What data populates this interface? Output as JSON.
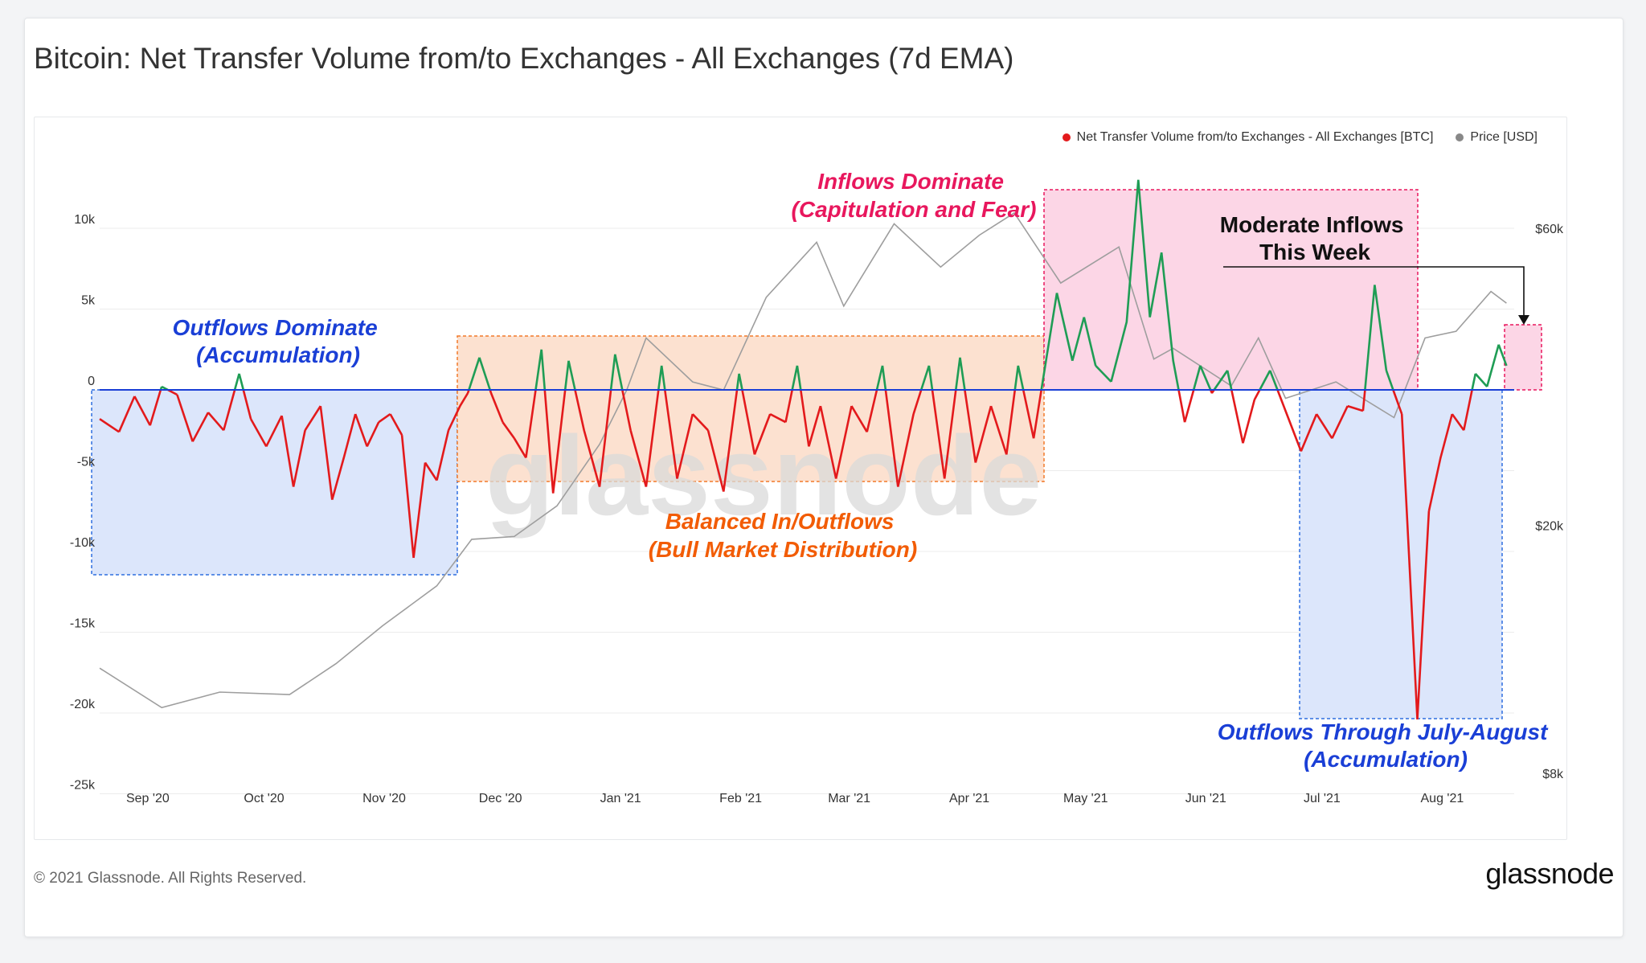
{
  "header": {
    "title": "Bitcoin: Net Transfer Volume from/to Exchanges - All Exchanges (7d EMA)"
  },
  "legend": [
    {
      "label": "Net Transfer Volume from/to Exchanges - All Exchanges [BTC]",
      "color": "#e31a1c"
    },
    {
      "label": "Price [USD]",
      "color": "#888888"
    }
  ],
  "watermark": "glassnode",
  "footer": {
    "copyright": "© 2021 Glassnode. All Rights Reserved.",
    "logo": "glassnode"
  },
  "colors": {
    "inflow": "#1f9d55",
    "outflow": "#e31a1c",
    "price": "#9e9e9e",
    "blue": "#1a3fd6",
    "orange": "#f25c05",
    "pink": "#e8175d"
  },
  "chart_data": {
    "type": "line",
    "x_labels": [
      "Sep '20",
      "Oct '20",
      "Nov '20",
      "Dec '20",
      "Jan '21",
      "Feb '21",
      "Mar '21",
      "Apr '21",
      "May '21",
      "Jun '21",
      "Jul '21",
      "Aug '21"
    ],
    "y_left": {
      "ticks": [
        "10k",
        "5k",
        "0",
        "-5k",
        "-10k",
        "-15k",
        "-20k",
        "-25k"
      ],
      "values": [
        10000,
        5000,
        0,
        -5000,
        -10000,
        -15000,
        -20000,
        -25000
      ]
    },
    "y_right": {
      "ticks": [
        "$60k",
        "$20k",
        "$8k"
      ],
      "values": [
        60000,
        20000,
        8000
      ],
      "scale": "log"
    },
    "series": [
      {
        "name": "Net Transfer Volume from/to Exchanges - All Exchanges [BTC]",
        "points": [
          [
            "2020-08-20",
            -1800
          ],
          [
            "2020-08-25",
            -2600
          ],
          [
            "2020-08-29",
            -400
          ],
          [
            "2020-09-02",
            -2200
          ],
          [
            "2020-09-05",
            200
          ],
          [
            "2020-09-09",
            -300
          ],
          [
            "2020-09-13",
            -3200
          ],
          [
            "2020-09-17",
            -1400
          ],
          [
            "2020-09-21",
            -2500
          ],
          [
            "2020-09-25",
            1000
          ],
          [
            "2020-09-28",
            -1800
          ],
          [
            "2020-10-02",
            -3500
          ],
          [
            "2020-10-06",
            -1600
          ],
          [
            "2020-10-09",
            -6000
          ],
          [
            "2020-10-12",
            -2500
          ],
          [
            "2020-10-16",
            -1000
          ],
          [
            "2020-10-19",
            -6800
          ],
          [
            "2020-10-22",
            -4200
          ],
          [
            "2020-10-25",
            -1500
          ],
          [
            "2020-10-28",
            -3500
          ],
          [
            "2020-10-31",
            -2000
          ],
          [
            "2020-11-03",
            -1500
          ],
          [
            "2020-11-06",
            -2800
          ],
          [
            "2020-11-09",
            -10400
          ],
          [
            "2020-11-12",
            -4500
          ],
          [
            "2020-11-15",
            -5600
          ],
          [
            "2020-11-18",
            -2500
          ],
          [
            "2020-11-21",
            -1000
          ],
          [
            "2020-11-23",
            -200
          ],
          [
            "2020-11-26",
            2000
          ],
          [
            "2020-11-29",
            -200
          ],
          [
            "2020-12-02",
            -2000
          ],
          [
            "2020-12-05",
            -3000
          ],
          [
            "2020-12-08",
            -4200
          ],
          [
            "2020-12-12",
            2500
          ],
          [
            "2020-12-15",
            -6400
          ],
          [
            "2020-12-19",
            1800
          ],
          [
            "2020-12-23",
            -2500
          ],
          [
            "2020-12-27",
            -6000
          ],
          [
            "2020-12-31",
            2200
          ],
          [
            "2021-01-04",
            -2500
          ],
          [
            "2021-01-08",
            -6000
          ],
          [
            "2021-01-12",
            1500
          ],
          [
            "2021-01-16",
            -5500
          ],
          [
            "2021-01-20",
            -1500
          ],
          [
            "2021-01-24",
            -2500
          ],
          [
            "2021-01-28",
            -6300
          ],
          [
            "2021-02-01",
            1000
          ],
          [
            "2021-02-05",
            -4000
          ],
          [
            "2021-02-09",
            -1500
          ],
          [
            "2021-02-13",
            -2000
          ],
          [
            "2021-02-16",
            1500
          ],
          [
            "2021-02-19",
            -3500
          ],
          [
            "2021-02-22",
            -1000
          ],
          [
            "2021-02-26",
            -5500
          ],
          [
            "2021-03-02",
            -1000
          ],
          [
            "2021-03-06",
            -2600
          ],
          [
            "2021-03-10",
            1500
          ],
          [
            "2021-03-14",
            -6000
          ],
          [
            "2021-03-18",
            -1500
          ],
          [
            "2021-03-22",
            1500
          ],
          [
            "2021-03-26",
            -5500
          ],
          [
            "2021-03-30",
            2000
          ],
          [
            "2021-04-03",
            -4500
          ],
          [
            "2021-04-07",
            -1000
          ],
          [
            "2021-04-11",
            -4000
          ],
          [
            "2021-04-14",
            1500
          ],
          [
            "2021-04-18",
            -3000
          ],
          [
            "2021-04-21",
            1500
          ],
          [
            "2021-04-24",
            6000
          ],
          [
            "2021-04-28",
            1800
          ],
          [
            "2021-05-01",
            4500
          ],
          [
            "2021-05-04",
            1500
          ],
          [
            "2021-05-08",
            500
          ],
          [
            "2021-05-12",
            4200
          ],
          [
            "2021-05-15",
            13000
          ],
          [
            "2021-05-18",
            4500
          ],
          [
            "2021-05-21",
            8500
          ],
          [
            "2021-05-24",
            1800
          ],
          [
            "2021-05-27",
            -2000
          ],
          [
            "2021-05-31",
            1500
          ],
          [
            "2021-06-03",
            -200
          ],
          [
            "2021-06-07",
            1200
          ],
          [
            "2021-06-11",
            -3300
          ],
          [
            "2021-06-14",
            -600
          ],
          [
            "2021-06-18",
            1200
          ],
          [
            "2021-06-22",
            -1300
          ],
          [
            "2021-06-26",
            -3800
          ],
          [
            "2021-06-30",
            -1500
          ],
          [
            "2021-07-04",
            -3000
          ],
          [
            "2021-07-08",
            -1000
          ],
          [
            "2021-07-12",
            -1300
          ],
          [
            "2021-07-15",
            6500
          ],
          [
            "2021-07-18",
            1200
          ],
          [
            "2021-07-22",
            -1500
          ],
          [
            "2021-07-26",
            -20400
          ],
          [
            "2021-07-29",
            -7500
          ],
          [
            "2021-08-01",
            -4200
          ],
          [
            "2021-08-04",
            -1500
          ],
          [
            "2021-08-07",
            -2500
          ],
          [
            "2021-08-10",
            1000
          ],
          [
            "2021-08-13",
            200
          ],
          [
            "2021-08-16",
            2800
          ],
          [
            "2021-08-18",
            1500
          ]
        ]
      },
      {
        "name": "Price [USD]",
        "points": [
          [
            "2020-08-20",
            11800
          ],
          [
            "2020-09-05",
            10200
          ],
          [
            "2020-09-20",
            10800
          ],
          [
            "2020-10-08",
            10700
          ],
          [
            "2020-10-20",
            12000
          ],
          [
            "2020-11-01",
            13800
          ],
          [
            "2020-11-15",
            16000
          ],
          [
            "2020-11-24",
            19000
          ],
          [
            "2020-12-05",
            19200
          ],
          [
            "2020-12-16",
            21500
          ],
          [
            "2020-12-27",
            27000
          ],
          [
            "2021-01-03",
            33000
          ],
          [
            "2021-01-08",
            40000
          ],
          [
            "2021-01-20",
            34000
          ],
          [
            "2021-01-28",
            33000
          ],
          [
            "2021-02-08",
            46500
          ],
          [
            "2021-02-21",
            57000
          ],
          [
            "2021-02-28",
            45000
          ],
          [
            "2021-03-13",
            61000
          ],
          [
            "2021-03-25",
            52000
          ],
          [
            "2021-04-04",
            58500
          ],
          [
            "2021-04-13",
            63500
          ],
          [
            "2021-04-25",
            49000
          ],
          [
            "2021-05-10",
            56000
          ],
          [
            "2021-05-19",
            37000
          ],
          [
            "2021-05-24",
            38500
          ],
          [
            "2021-06-08",
            33500
          ],
          [
            "2021-06-15",
            40000
          ],
          [
            "2021-06-22",
            32000
          ],
          [
            "2021-07-05",
            34000
          ],
          [
            "2021-07-20",
            29800
          ],
          [
            "2021-07-28",
            40000
          ],
          [
            "2021-08-05",
            41000
          ],
          [
            "2021-08-14",
            47500
          ],
          [
            "2021-08-18",
            45500
          ]
        ]
      }
    ],
    "annotations": [
      {
        "text": [
          "Outflows Dominate",
          "(Accumulation)"
        ],
        "color": "#1a3fd6"
      },
      {
        "text": [
          "Balanced In/Outflows",
          "(Bull Market Distribution)"
        ],
        "color": "#f25c05"
      },
      {
        "text": [
          "Inflows Dominate",
          "(Capitulation and Fear)"
        ],
        "color": "#e8175d"
      },
      {
        "text": [
          "Moderate Inflows",
          "This Week"
        ],
        "color": "#111111"
      },
      {
        "text": [
          "Outflows Through July-August",
          "(Accumulation)"
        ],
        "color": "#1a3fd6"
      }
    ]
  }
}
